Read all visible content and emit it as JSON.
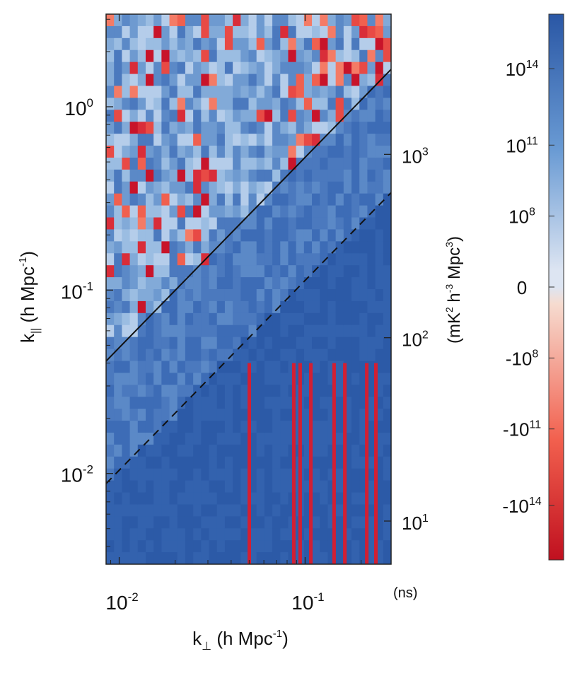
{
  "chart_data": {
    "type": "heatmap",
    "title": "",
    "xlabel": "k⊥ (h Mpc⁻¹)",
    "ylabel": "k|| (h Mpc⁻¹)",
    "xscale": "log",
    "yscale": "log",
    "xlim": [
      0.0085,
      0.29
    ],
    "ylim": [
      0.0032,
      3.2
    ],
    "x_ticks": [
      {
        "value": 0.01,
        "label": "10",
        "exp": "-2"
      },
      {
        "value": 0.1,
        "label": "10",
        "exp": "-1"
      }
    ],
    "y_ticks": [
      {
        "value": 0.01,
        "label": "10",
        "exp": "-2"
      },
      {
        "value": 0.1,
        "label": "10",
        "exp": "-1"
      },
      {
        "value": 1,
        "label": "10",
        "exp": "0"
      }
    ],
    "right_axis": {
      "label": "(ns)",
      "ticks": [
        {
          "value": 10,
          "label": "10",
          "exp": "1",
          "k_par": 0.0055
        },
        {
          "value": 100,
          "label": "10",
          "exp": "2",
          "k_par": 0.055
        },
        {
          "value": 1000,
          "label": "10",
          "exp": "3",
          "k_par": 0.55
        }
      ]
    },
    "lines": [
      {
        "name": "horizon limit",
        "style": "solid",
        "points": [
          [
            0.0085,
            0.041
          ],
          [
            0.29,
            1.6
          ]
        ]
      },
      {
        "name": "primary beam limit",
        "style": "dashed",
        "points": [
          [
            0.0085,
            0.0088
          ],
          [
            0.29,
            0.34
          ]
        ]
      }
    ],
    "colorbar": {
      "label": "(mK² h⁻³ Mpc³)",
      "scale": "symlog",
      "ticks": [
        {
          "value": 100000000000000.0,
          "label": "10",
          "exp": "14"
        },
        {
          "value": 100000000000.0,
          "label": "10",
          "exp": "11"
        },
        {
          "value": 100000000.0,
          "label": "10",
          "exp": "8"
        },
        {
          "value": 0,
          "label": "0",
          "exp": ""
        },
        {
          "value": -100000000.0,
          "label": "-10",
          "exp": "8"
        },
        {
          "value": -100000000000.0,
          "label": "-10",
          "exp": "11"
        },
        {
          "value": -100000000000000.0,
          "label": "-10",
          "exp": "14"
        }
      ],
      "colors": {
        "pos_high": "#2a57a5",
        "pos_mid": "#6a9bd4",
        "pos_low": "#dde5f2",
        "neg_low": "#f6dcd0",
        "neg_mid": "#f2604e",
        "neg_high": "#c0101f"
      }
    },
    "regions": {
      "foreground_wedge_value": 1000000000000000.0,
      "background_value": 30000000000000.0,
      "window_value": 100000000000.0,
      "notes": "Bright foreground wedge below the dashed line; positive/negative noise-like fluctuations in the EoR window above the solid horizon line."
    }
  }
}
